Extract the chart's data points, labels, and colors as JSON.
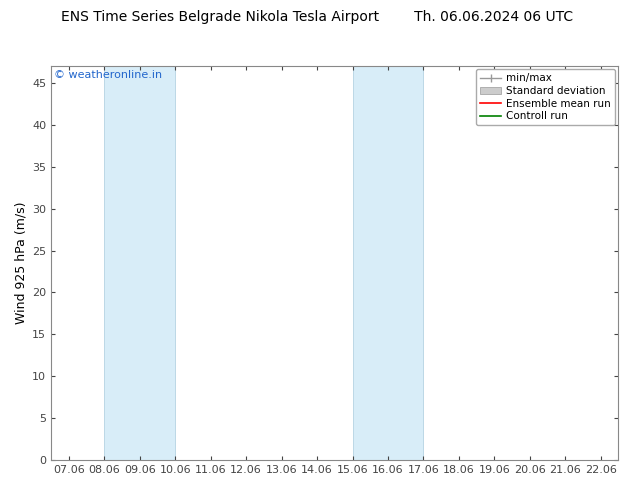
{
  "title": "ENS Time Series Belgrade Nikola Tesla Airport        Th. 06.06.2024 06 UTC",
  "ylabel": "Wind 925 hPa (m/s)",
  "watermark": "© weatheronline.in",
  "x_tick_labels": [
    "07.06",
    "08.06",
    "09.06",
    "10.06",
    "11.06",
    "12.06",
    "13.06",
    "14.06",
    "15.06",
    "16.06",
    "17.06",
    "18.06",
    "19.06",
    "20.06",
    "21.06",
    "22.06"
  ],
  "x_tick_positions": [
    0,
    1,
    2,
    3,
    4,
    5,
    6,
    7,
    8,
    9,
    10,
    11,
    12,
    13,
    14,
    15
  ],
  "ylim": [
    0,
    47
  ],
  "yticks": [
    0,
    5,
    10,
    15,
    20,
    25,
    30,
    35,
    40,
    45
  ],
  "xlim": [
    -0.5,
    15.5
  ],
  "shaded_bands": [
    {
      "xmin": 1,
      "xmax": 2,
      "color": "#ddeeff"
    },
    {
      "xmin": 2,
      "xmax": 3,
      "color": "#ddeeff"
    },
    {
      "xmin": 8,
      "xmax": 9,
      "color": "#ddeeff"
    },
    {
      "xmin": 9,
      "xmax": 10,
      "color": "#ddeeff"
    }
  ],
  "shaded_bands_v2": [
    {
      "xmin": 1,
      "xmax": 3,
      "facecolor": "#d8edf8",
      "edgecolor": "#aaccdd",
      "lw": 0.5
    },
    {
      "xmin": 8,
      "xmax": 10,
      "facecolor": "#d8edf8",
      "edgecolor": "#aaccdd",
      "lw": 0.5
    }
  ],
  "legend_entries": [
    {
      "label": "min/max",
      "color": "#999999",
      "lw": 1.0,
      "linestyle": "-",
      "type": "line_cap"
    },
    {
      "label": "Standard deviation",
      "color": "#cccccc",
      "lw": 8,
      "linestyle": "-",
      "type": "patch"
    },
    {
      "label": "Ensemble mean run",
      "color": "#ff0000",
      "lw": 1.2,
      "linestyle": "-",
      "type": "line"
    },
    {
      "label": "Controll run",
      "color": "#008000",
      "lw": 1.2,
      "linestyle": "-",
      "type": "line"
    }
  ],
  "background_color": "#ffffff",
  "plot_bg_color": "#ffffff",
  "spine_color": "#888888",
  "tick_color": "#444444",
  "title_color": "#000000",
  "watermark_color": "#2266cc",
  "font_size_title": 10,
  "font_size_axis": 9,
  "font_size_ticks": 8,
  "font_size_legend": 7.5,
  "font_size_watermark": 8
}
